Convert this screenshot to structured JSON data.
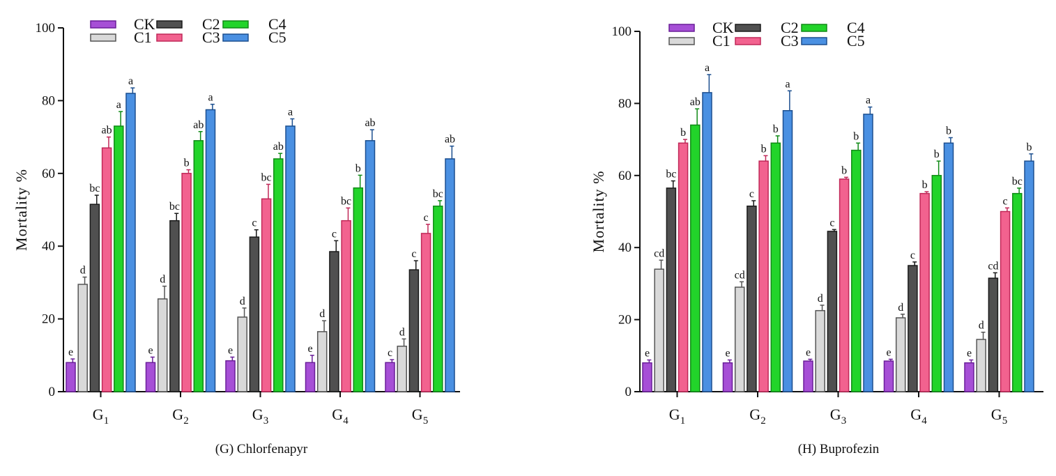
{
  "legend": {
    "items": [
      {
        "key": "CK",
        "label": "CK"
      },
      {
        "key": "C1",
        "label": "C1"
      },
      {
        "key": "C2",
        "label": "C2"
      },
      {
        "key": "C3",
        "label": "C3"
      },
      {
        "key": "C4",
        "label": "C4"
      },
      {
        "key": "C5",
        "label": "C5"
      }
    ]
  },
  "colors": {
    "CK": {
      "fill": "#a64fd6",
      "stroke": "#6a1f99"
    },
    "C1": {
      "fill": "#d9d9d9",
      "stroke": "#555555"
    },
    "C2": {
      "fill": "#505050",
      "stroke": "#1a1a1a"
    },
    "C3": {
      "fill": "#f2628f",
      "stroke": "#c02858"
    },
    "C4": {
      "fill": "#22d42a",
      "stroke": "#108a16"
    },
    "C5": {
      "fill": "#4a90e2",
      "stroke": "#1c4f8f"
    }
  },
  "chart_data": [
    {
      "type": "bar",
      "subtitle": "(G) Chlorfenapyr",
      "ylabel": "Mortality %",
      "ylim": [
        0,
        100
      ],
      "yticks": [
        "0",
        "20",
        "40",
        "60",
        "80",
        "100"
      ],
      "categories": [
        {
          "base": "G",
          "sub": "1"
        },
        {
          "base": "G",
          "sub": "2"
        },
        {
          "base": "G",
          "sub": "3"
        },
        {
          "base": "G",
          "sub": "4"
        },
        {
          "base": "G",
          "sub": "5"
        }
      ],
      "series": [
        {
          "name": "CK",
          "values": [
            8,
            8,
            8.5,
            8,
            8
          ],
          "errors": [
            1,
            1.5,
            1,
            2,
            0.8
          ],
          "labels": [
            "e",
            "e",
            "e",
            "e",
            "c"
          ]
        },
        {
          "name": "C1",
          "values": [
            29.5,
            25.5,
            20.5,
            16.5,
            12.5
          ],
          "errors": [
            2,
            3.5,
            2.5,
            3,
            2
          ],
          "labels": [
            "d",
            "d",
            "d",
            "d",
            "d"
          ]
        },
        {
          "name": "C2",
          "values": [
            51.5,
            47,
            42.5,
            38.5,
            33.5
          ],
          "errors": [
            2.5,
            2,
            2,
            3,
            2.5
          ],
          "labels": [
            "bc",
            "bc",
            "c",
            "c",
            "c"
          ]
        },
        {
          "name": "C3",
          "values": [
            67,
            60,
            53,
            47,
            43.5
          ],
          "errors": [
            3,
            1,
            4,
            3.5,
            2.5
          ],
          "labels": [
            "ab",
            "b",
            "bc",
            "bc",
            "c"
          ]
        },
        {
          "name": "C4",
          "values": [
            73,
            69,
            64,
            56,
            51
          ],
          "errors": [
            4,
            2.5,
            1.5,
            3.5,
            1.5
          ],
          "labels": [
            "a",
            "ab",
            "ab",
            "b",
            "bc"
          ]
        },
        {
          "name": "C5",
          "values": [
            82,
            77.5,
            73,
            69,
            64
          ],
          "errors": [
            1.5,
            1.5,
            2,
            3,
            3.5
          ],
          "labels": [
            "a",
            "a",
            "a",
            "ab",
            "ab"
          ]
        }
      ]
    },
    {
      "type": "bar",
      "subtitle": "(H) Buprofezin",
      "ylabel": "Mortality %",
      "ylim": [
        0,
        100
      ],
      "yticks": [
        "0",
        "20",
        "40",
        "60",
        "80",
        "100"
      ],
      "categories": [
        {
          "base": "G",
          "sub": "1"
        },
        {
          "base": "G",
          "sub": "2"
        },
        {
          "base": "G",
          "sub": "3"
        },
        {
          "base": "G",
          "sub": "4"
        },
        {
          "base": "G",
          "sub": "5"
        }
      ],
      "series": [
        {
          "name": "CK",
          "values": [
            8,
            8,
            8.5,
            8.5,
            8
          ],
          "errors": [
            0.8,
            0.8,
            0.5,
            0.5,
            0.8
          ],
          "labels": [
            "e",
            "e",
            "e",
            "e",
            "e"
          ]
        },
        {
          "name": "C1",
          "values": [
            34,
            29,
            22.5,
            20.5,
            14.5
          ],
          "errors": [
            2.5,
            1.5,
            1.5,
            1,
            2
          ],
          "labels": [
            "cd",
            "cd",
            "d",
            "d",
            "d"
          ]
        },
        {
          "name": "C2",
          "values": [
            56.5,
            51.5,
            44.5,
            35,
            31.5
          ],
          "errors": [
            2,
            1.5,
            0.5,
            1,
            1.5
          ],
          "labels": [
            "bc",
            "c",
            "c",
            "c",
            "cd"
          ]
        },
        {
          "name": "C3",
          "values": [
            69,
            64,
            59,
            55,
            50
          ],
          "errors": [
            1,
            1.5,
            0.5,
            0.5,
            1
          ],
          "labels": [
            "b",
            "b",
            "b",
            "b",
            "c"
          ]
        },
        {
          "name": "C4",
          "values": [
            74,
            69,
            67,
            60,
            55
          ],
          "errors": [
            4.5,
            2,
            2,
            4,
            1.5
          ],
          "labels": [
            "ab",
            "b",
            "b",
            "b",
            "bc"
          ]
        },
        {
          "name": "C5",
          "values": [
            83,
            78,
            77,
            69,
            64
          ],
          "errors": [
            5,
            5.5,
            2,
            1.5,
            2
          ],
          "labels": [
            "a",
            "a",
            "a",
            "b",
            "b"
          ]
        }
      ]
    }
  ]
}
